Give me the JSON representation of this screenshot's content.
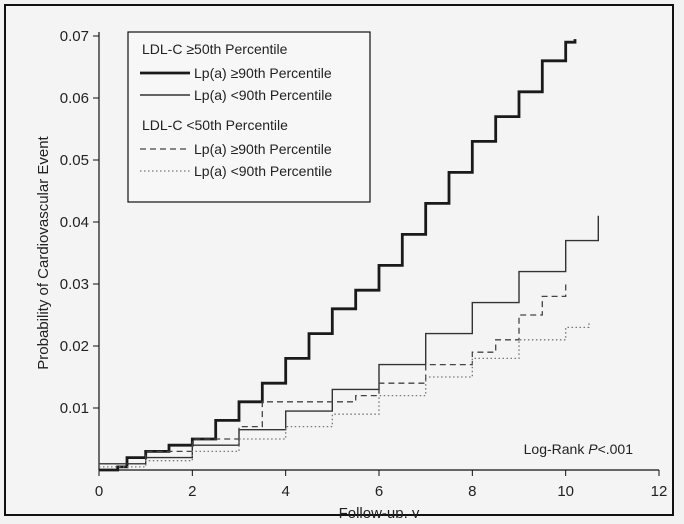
{
  "chart_data": {
    "type": "line",
    "xlabel": "Follow-up, y",
    "ylabel": "Probability of Cardiovascular Event",
    "xlim": [
      0,
      12
    ],
    "ylim": [
      0,
      0.07
    ],
    "x_ticks": [
      "0",
      "2",
      "4",
      "6",
      "8",
      "10",
      "12"
    ],
    "y_ticks": [
      "0.01",
      "0.02",
      "0.03",
      "0.04",
      "0.05",
      "0.06",
      "0.07"
    ],
    "annotation": {
      "prefix": "Log-Rank ",
      "italic": "P",
      "suffix": "<.001"
    },
    "legend": {
      "placement": "top-left",
      "groups": [
        {
          "title": "LDL-C ≥50th Percentile",
          "entries": [
            0,
            1
          ]
        },
        {
          "title": "LDL-C <50th Percentile",
          "entries": [
            2,
            3
          ]
        }
      ]
    },
    "series": [
      {
        "name": "Lp(a) ≥90th Percentile",
        "style": "thick",
        "color": "#1a1a1a",
        "points": [
          [
            0,
            0
          ],
          [
            0.4,
            0.0005
          ],
          [
            0.6,
            0.002
          ],
          [
            1,
            0.003
          ],
          [
            1.5,
            0.004
          ],
          [
            2,
            0.005
          ],
          [
            2.5,
            0.008
          ],
          [
            3,
            0.011
          ],
          [
            3.5,
            0.014
          ],
          [
            4,
            0.018
          ],
          [
            4.5,
            0.022
          ],
          [
            5,
            0.026
          ],
          [
            5.5,
            0.029
          ],
          [
            6,
            0.033
          ],
          [
            6.5,
            0.038
          ],
          [
            7,
            0.043
          ],
          [
            7.5,
            0.048
          ],
          [
            8,
            0.053
          ],
          [
            8.5,
            0.057
          ],
          [
            9,
            0.061
          ],
          [
            9.5,
            0.066
          ],
          [
            10,
            0.069
          ],
          [
            10.2,
            0.0695
          ]
        ]
      },
      {
        "name": "Lp(a) <90th Percentile",
        "style": "solid",
        "color": "#333333",
        "points": [
          [
            0,
            0.001
          ],
          [
            1,
            0.002
          ],
          [
            2,
            0.004
          ],
          [
            3,
            0.0065
          ],
          [
            4,
            0.0095
          ],
          [
            5,
            0.013
          ],
          [
            6,
            0.017
          ],
          [
            7,
            0.022
          ],
          [
            8,
            0.027
          ],
          [
            9,
            0.032
          ],
          [
            10,
            0.037
          ],
          [
            10.7,
            0.041
          ]
        ]
      },
      {
        "name": "Lp(a) ≥90th Percentile",
        "style": "dashed",
        "color": "#444444",
        "points": [
          [
            0,
            0.001
          ],
          [
            1,
            0.003
          ],
          [
            2,
            0.005
          ],
          [
            3,
            0.007
          ],
          [
            3.5,
            0.011
          ],
          [
            4,
            0.011
          ],
          [
            5,
            0.011
          ],
          [
            5.5,
            0.012
          ],
          [
            6,
            0.014
          ],
          [
            7,
            0.017
          ],
          [
            8,
            0.019
          ],
          [
            8.5,
            0.021
          ],
          [
            9,
            0.025
          ],
          [
            9.5,
            0.028
          ],
          [
            10,
            0.03
          ]
        ]
      },
      {
        "name": "Lp(a) <90th Percentile",
        "style": "dotted",
        "color": "#777777",
        "points": [
          [
            0,
            0.0005
          ],
          [
            1,
            0.0015
          ],
          [
            2,
            0.003
          ],
          [
            3,
            0.005
          ],
          [
            4,
            0.007
          ],
          [
            5,
            0.009
          ],
          [
            6,
            0.012
          ],
          [
            7,
            0.015
          ],
          [
            8,
            0.018
          ],
          [
            9,
            0.021
          ],
          [
            10,
            0.023
          ],
          [
            10.5,
            0.024
          ]
        ]
      }
    ]
  }
}
